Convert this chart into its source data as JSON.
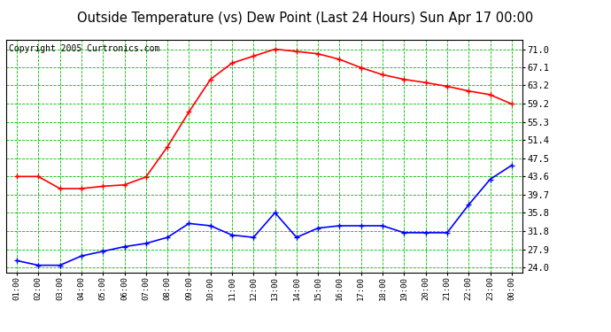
{
  "title": "Outside Temperature (vs) Dew Point (Last 24 Hours) Sun Apr 17 00:00",
  "copyright": "Copyright 2005 Curtronics.com",
  "x_labels": [
    "01:00",
    "02:00",
    "03:00",
    "04:00",
    "05:00",
    "06:00",
    "07:00",
    "08:00",
    "09:00",
    "10:00",
    "11:00",
    "12:00",
    "13:00",
    "14:00",
    "15:00",
    "16:00",
    "17:00",
    "18:00",
    "19:00",
    "20:00",
    "21:00",
    "22:00",
    "23:00",
    "00:00"
  ],
  "y_ticks": [
    24.0,
    27.9,
    31.8,
    35.8,
    39.7,
    43.6,
    47.5,
    51.4,
    55.3,
    59.2,
    63.2,
    67.1,
    71.0
  ],
  "temp_data": [
    43.6,
    43.6,
    41.0,
    41.0,
    41.5,
    41.8,
    43.5,
    50.0,
    57.5,
    64.5,
    68.0,
    69.5,
    71.0,
    70.5,
    70.0,
    68.8,
    67.0,
    65.5,
    64.5,
    63.8,
    63.0,
    62.0,
    61.2,
    59.2
  ],
  "dew_data": [
    25.5,
    24.5,
    24.5,
    26.5,
    27.5,
    28.5,
    29.2,
    30.5,
    33.5,
    33.0,
    31.0,
    30.5,
    35.8,
    30.5,
    32.5,
    33.0,
    33.0,
    33.0,
    31.5,
    31.5,
    31.5,
    37.5,
    43.0,
    46.0
  ],
  "temp_color": "#ff0000",
  "dew_color": "#0000ff",
  "bg_color": "#ffffff",
  "plot_bg_color": "#ffffff",
  "grid_color": "#00bb00",
  "title_color": "#000000",
  "marker": "+",
  "marker_size": 5,
  "linewidth": 1.2,
  "ylim": [
    23.0,
    73.0
  ],
  "title_fontsize": 10.5,
  "copyright_fontsize": 7
}
